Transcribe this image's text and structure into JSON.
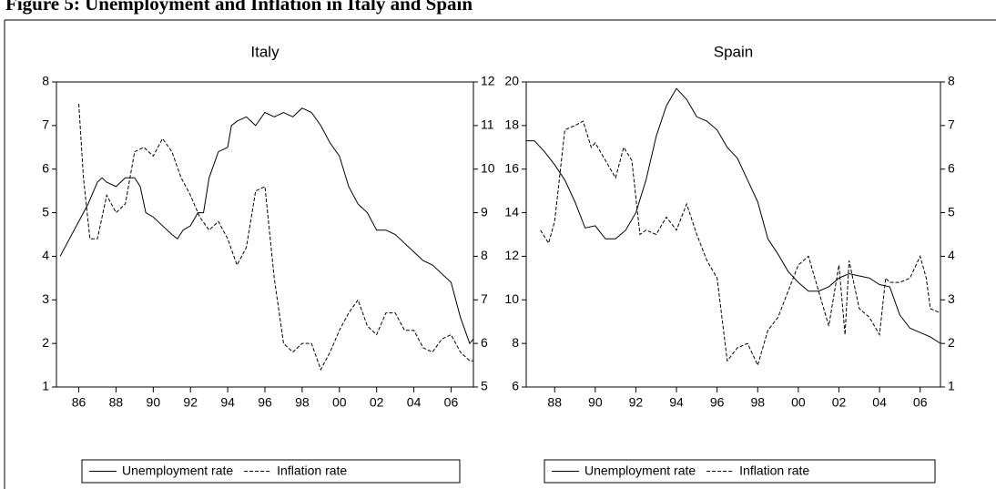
{
  "figure": {
    "title": "Figure 5: Unemployment and Inflation in Italy and Spain"
  },
  "chart_data": [
    {
      "type": "line",
      "title": "Italy",
      "xlim": [
        1984.8,
        2007.2
      ],
      "xticks": [
        {
          "value": 1986,
          "label": "86"
        },
        {
          "value": 1988,
          "label": "88"
        },
        {
          "value": 1990,
          "label": "90"
        },
        {
          "value": 1992,
          "label": "92"
        },
        {
          "value": 1994,
          "label": "94"
        },
        {
          "value": 1996,
          "label": "96"
        },
        {
          "value": 1998,
          "label": "98"
        },
        {
          "value": 2000,
          "label": "00"
        },
        {
          "value": 2002,
          "label": "02"
        },
        {
          "value": 2004,
          "label": "04"
        },
        {
          "value": 2006,
          "label": "06"
        }
      ],
      "ylim": [
        1,
        8
      ],
      "yticks": [
        1,
        2,
        3,
        4,
        5,
        6,
        7,
        8
      ],
      "y2lim": [
        5,
        12
      ],
      "y2ticks": [
        5,
        6,
        7,
        8,
        9,
        10,
        11,
        12
      ],
      "series": [
        {
          "name": "Unemployment rate",
          "color": "#000000",
          "line_style": "solid",
          "x": [
            1985.0,
            1985.5,
            1986.0,
            1986.5,
            1987.0,
            1987.25,
            1987.5,
            1988.0,
            1988.5,
            1989.0,
            1989.3,
            1989.6,
            1990.0,
            1990.5,
            1991.0,
            1991.3,
            1991.6,
            1992.0,
            1992.4,
            1992.7,
            1993.0,
            1993.5,
            1994.0,
            1994.2,
            1994.5,
            1995.0,
            1995.5,
            1996.0,
            1996.5,
            1997.0,
            1997.5,
            1998.0,
            1998.5,
            1999.0,
            1999.5,
            2000.0,
            2000.5,
            2001.0,
            2001.5,
            2002.0,
            2002.5,
            2003.0,
            2003.5,
            2004.0,
            2004.5,
            2005.0,
            2005.5,
            2006.0,
            2006.5,
            2007.0,
            2007.2
          ],
          "values": [
            4.0,
            4.4,
            4.8,
            5.2,
            5.7,
            5.8,
            5.7,
            5.6,
            5.8,
            5.8,
            5.6,
            5.0,
            4.9,
            4.7,
            4.5,
            4.4,
            4.6,
            4.7,
            5.0,
            5.0,
            5.8,
            6.4,
            6.5,
            7.0,
            7.1,
            7.2,
            7.0,
            7.3,
            7.2,
            7.3,
            7.2,
            7.4,
            7.3,
            7.0,
            6.6,
            6.3,
            5.6,
            5.2,
            5.0,
            4.6,
            4.6,
            4.5,
            4.3,
            4.1,
            3.9,
            3.8,
            3.6,
            3.4,
            2.6,
            2.0,
            2.1
          ]
        },
        {
          "name": "Inflation rate",
          "color": "#000000",
          "line_style": "dashed",
          "axis": "y2",
          "x": [
            1986.0,
            1986.25,
            1986.6,
            1987.0,
            1987.5,
            1988.0,
            1988.5,
            1989.0,
            1989.5,
            1990.0,
            1990.5,
            1991.0,
            1991.5,
            1992.0,
            1992.5,
            1993.0,
            1993.5,
            1994.0,
            1994.5,
            1995.0,
            1995.5,
            1996.0,
            1996.5,
            1997.0,
            1997.5,
            1998.0,
            1998.5,
            1999.0,
            1999.5,
            2000.0,
            2000.5,
            2001.0,
            2001.5,
            2002.0,
            2002.5,
            2003.0,
            2003.5,
            2004.0,
            2004.5,
            2005.0,
            2005.5,
            2006.0,
            2006.5,
            2007.0,
            2007.2
          ],
          "values": [
            11.5,
            9.8,
            8.4,
            8.4,
            9.4,
            9.0,
            9.2,
            10.4,
            10.5,
            10.3,
            10.7,
            10.4,
            9.8,
            9.4,
            8.9,
            8.6,
            8.8,
            8.4,
            7.8,
            8.2,
            9.5,
            9.6,
            7.5,
            6.0,
            5.8,
            6.0,
            6.0,
            5.4,
            5.8,
            6.3,
            6.7,
            7.0,
            6.4,
            6.2,
            6.7,
            6.7,
            6.3,
            6.3,
            5.9,
            5.8,
            6.1,
            6.2,
            5.8,
            5.6,
            5.6
          ]
        }
      ]
    },
    {
      "type": "line",
      "title": "Spain",
      "xlim": [
        1986.6,
        2007.0
      ],
      "xticks": [
        {
          "value": 1988,
          "label": "88"
        },
        {
          "value": 1990,
          "label": "90"
        },
        {
          "value": 1992,
          "label": "92"
        },
        {
          "value": 1994,
          "label": "94"
        },
        {
          "value": 1996,
          "label": "96"
        },
        {
          "value": 1998,
          "label": "98"
        },
        {
          "value": 2000,
          "label": "00"
        },
        {
          "value": 2002,
          "label": "02"
        },
        {
          "value": 2004,
          "label": "04"
        },
        {
          "value": 2006,
          "label": "06"
        }
      ],
      "ylim": [
        6,
        20
      ],
      "yticks": [
        6,
        8,
        10,
        12,
        14,
        16,
        18,
        20
      ],
      "y2lim": [
        1,
        8
      ],
      "y2ticks": [
        1,
        2,
        3,
        4,
        5,
        6,
        7,
        8
      ],
      "series": [
        {
          "name": "Unemployment rate",
          "color": "#000000",
          "line_style": "solid",
          "x": [
            1986.6,
            1987.0,
            1987.5,
            1988.0,
            1988.5,
            1989.0,
            1989.5,
            1990.0,
            1990.5,
            1991.0,
            1991.5,
            1992.0,
            1992.5,
            1993.0,
            1993.5,
            1994.0,
            1994.5,
            1995.0,
            1995.5,
            1996.0,
            1996.5,
            1997.0,
            1997.5,
            1998.0,
            1998.5,
            1999.0,
            1999.5,
            2000.0,
            2000.5,
            2001.0,
            2001.5,
            2002.0,
            2002.5,
            2003.0,
            2003.5,
            2004.0,
            2004.5,
            2005.0,
            2005.5,
            2006.0,
            2006.5,
            2007.0
          ],
          "values": [
            17.3,
            17.3,
            16.8,
            16.2,
            15.5,
            14.5,
            13.3,
            13.4,
            12.8,
            12.8,
            13.2,
            14.0,
            15.5,
            17.5,
            18.9,
            19.7,
            19.2,
            18.4,
            18.2,
            17.8,
            17.0,
            16.5,
            15.5,
            14.5,
            12.8,
            12.1,
            11.3,
            10.8,
            10.4,
            10.4,
            10.6,
            11.0,
            11.2,
            11.1,
            11.0,
            10.7,
            10.6,
            9.3,
            8.7,
            8.5,
            8.3,
            8.0
          ]
        },
        {
          "name": "Inflation rate",
          "color": "#000000",
          "line_style": "dashed",
          "axis": "y2",
          "x": [
            1987.3,
            1987.7,
            1988.0,
            1988.5,
            1989.0,
            1989.4,
            1989.8,
            1990.0,
            1990.5,
            1991.0,
            1991.4,
            1991.8,
            1992.2,
            1992.5,
            1993.0,
            1993.5,
            1994.0,
            1994.5,
            1995.0,
            1995.5,
            1996.0,
            1996.5,
            1997.0,
            1997.5,
            1998.0,
            1998.5,
            1999.0,
            1999.5,
            2000.0,
            2000.5,
            2001.0,
            2001.5,
            2002.0,
            2002.3,
            2002.5,
            2003.0,
            2003.5,
            2004.0,
            2004.3,
            2004.5,
            2005.0,
            2005.5,
            2006.0,
            2006.3,
            2006.5,
            2007.0
          ],
          "values": [
            4.6,
            4.3,
            4.8,
            6.9,
            7.0,
            7.1,
            6.5,
            6.6,
            6.2,
            5.8,
            6.5,
            6.2,
            4.5,
            4.6,
            4.5,
            4.9,
            4.6,
            5.2,
            4.5,
            3.9,
            3.5,
            1.6,
            1.9,
            2.0,
            1.5,
            2.3,
            2.6,
            3.2,
            3.8,
            4.0,
            3.2,
            2.4,
            3.8,
            2.2,
            3.9,
            2.8,
            2.6,
            2.2,
            3.5,
            3.4,
            3.4,
            3.5,
            4.0,
            3.5,
            2.8,
            2.7
          ]
        }
      ]
    }
  ]
}
